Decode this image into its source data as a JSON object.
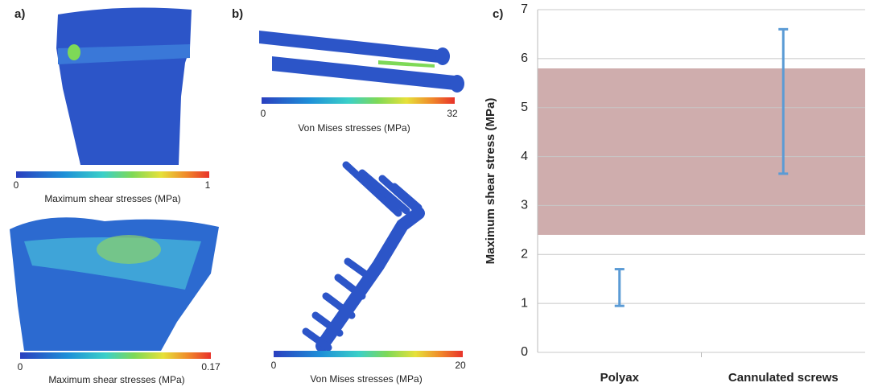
{
  "panels": [
    {
      "label": "a)",
      "colorbars": [
        {
          "min": 0,
          "max": 1,
          "title": "Maximum shear stresses (MPa)"
        },
        {
          "min": 0,
          "max": 0.17,
          "title": "Maximum shear stresses (MPa)"
        }
      ]
    },
    {
      "label": "b)",
      "colorbars": [
        {
          "min": 0,
          "max": 32,
          "title": "Von Mises stresses (MPa)"
        },
        {
          "min": 0,
          "max": 20,
          "title": "Von Mises stresses (MPa)"
        }
      ]
    }
  ],
  "chart_data": {
    "type": "range",
    "label": "c)",
    "y_label": "Maximum shear stress (MPa)",
    "categories": [
      "Polyax",
      "Cannulated screws"
    ],
    "low": [
      0.95,
      3.65
    ],
    "high": [
      1.7,
      6.6
    ],
    "color": "#5b9bd5",
    "band": {
      "low": 2.4,
      "high": 5.8,
      "color": "#a86a6a"
    },
    "ylim": [
      0,
      7
    ],
    "yticks": [
      0,
      1,
      2,
      3,
      4,
      5,
      6,
      7
    ],
    "grid": true
  }
}
